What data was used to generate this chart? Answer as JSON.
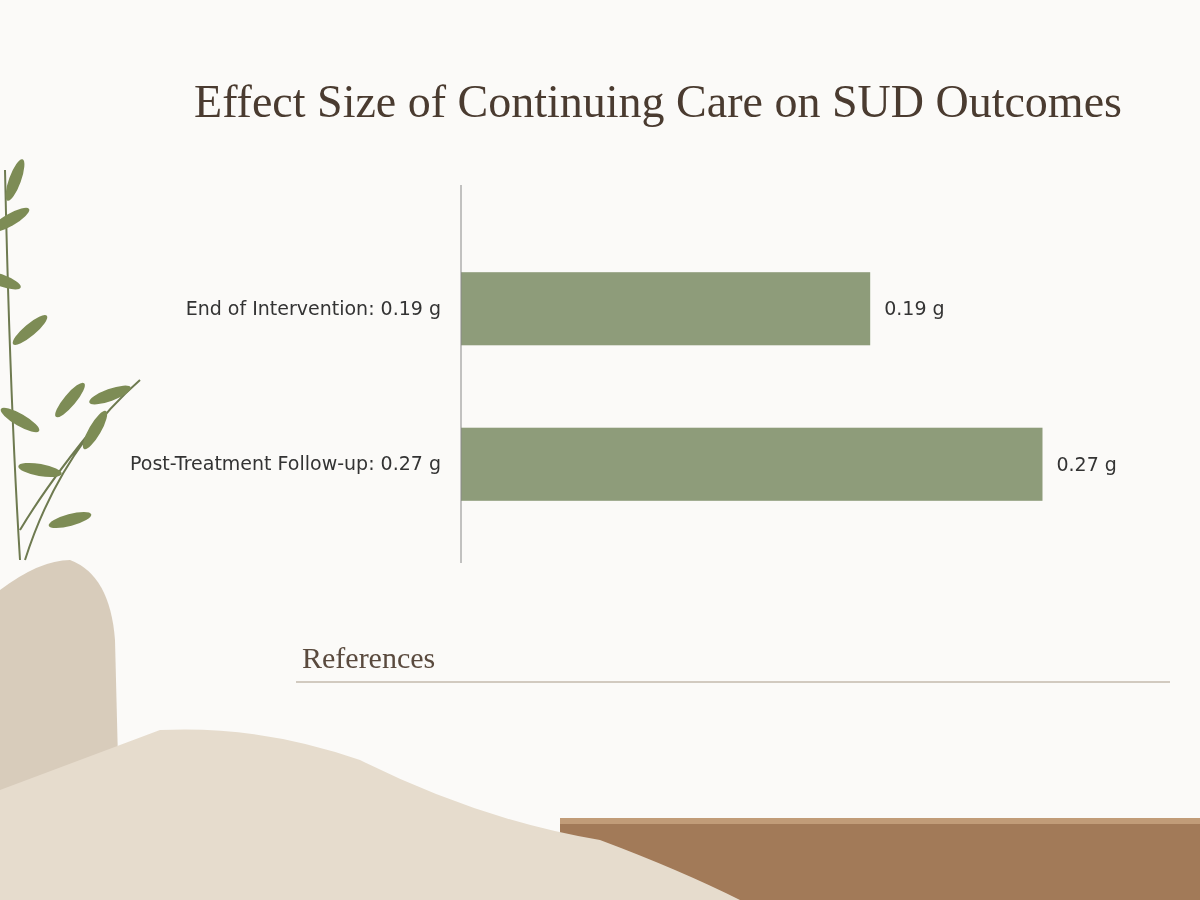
{
  "chart_data": {
    "type": "bar",
    "orientation": "horizontal",
    "title": "Effect Size of Continuing Care on SUD Outcomes",
    "categories": [
      "End of Intervention: 0.19 g",
      "Post-Treatment Follow-up: 0.27 g"
    ],
    "values": [
      0.19,
      0.27
    ],
    "value_labels": [
      "0.19 g",
      "0.27 g"
    ],
    "color": "#8e9c7a",
    "annotations": [
      "References"
    ]
  }
}
